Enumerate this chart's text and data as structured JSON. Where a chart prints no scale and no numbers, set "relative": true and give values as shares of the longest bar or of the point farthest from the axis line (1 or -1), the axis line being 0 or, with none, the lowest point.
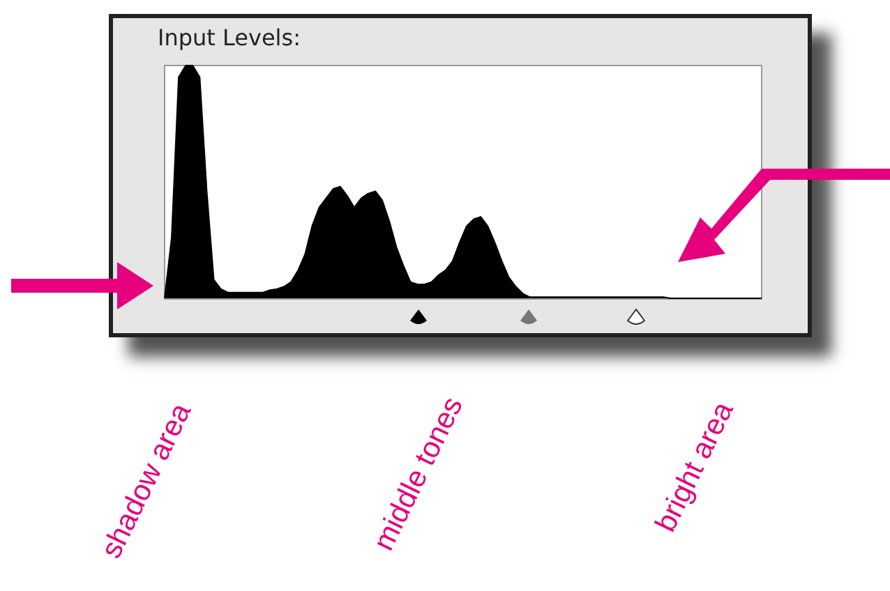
{
  "chart_data": {
    "type": "area",
    "title": "Input Levels:",
    "relative": true,
    "marker": "none",
    "categories": [
      null,
      null,
      null,
      null,
      null,
      null,
      null,
      null,
      null,
      null,
      null,
      null,
      null,
      null,
      null,
      null,
      null,
      null,
      null,
      null,
      null,
      null,
      null,
      null,
      null,
      null,
      null,
      null,
      null,
      null,
      null,
      null,
      null,
      null,
      null,
      null,
      null,
      null,
      null,
      null,
      null,
      null,
      null,
      null,
      null,
      null,
      null,
      null,
      null,
      null,
      null,
      null,
      null,
      null,
      null,
      null,
      null,
      null,
      null,
      null,
      null,
      null,
      null,
      null,
      null,
      null,
      null,
      null,
      null,
      null,
      null,
      null,
      null,
      null,
      null,
      null,
      null,
      null,
      null,
      null,
      null,
      null,
      null,
      null,
      null,
      null
    ],
    "series": [
      {
        "color": "#000000",
        "values": [
          0,
          0.26,
          0.95,
          1,
          1,
          0.95,
          0.46,
          0.08,
          0.04,
          0.025,
          0.025,
          0.025,
          0.025,
          0.025,
          0.025,
          0.035,
          0.04,
          0.05,
          0.07,
          0.12,
          0.19,
          0.31,
          0.39,
          0.43,
          0.47,
          0.48,
          0.44,
          0.39,
          0.43,
          0.45,
          0.46,
          0.42,
          0.33,
          0.22,
          0.14,
          0.07,
          0.06,
          0.06,
          0.07,
          0.1,
          0.12,
          0.16,
          0.24,
          0.31,
          0.34,
          0.35,
          0.31,
          0.24,
          0.16,
          0.09,
          0.05,
          0.02,
          0.005,
          0.005,
          0.005,
          0.005,
          0.005,
          0.005,
          0.005,
          0.005,
          0.005,
          0.005,
          0.005,
          0.005,
          0.005,
          0.005,
          0.005,
          0.005,
          0.005,
          0.005,
          0.005,
          0.005,
          0,
          0,
          0,
          0,
          0,
          0,
          0,
          0,
          0,
          0,
          0,
          0,
          0,
          0
        ]
      }
    ],
    "annotations": [
      "shadow area",
      "middle tones",
      "bright area"
    ]
  }
}
